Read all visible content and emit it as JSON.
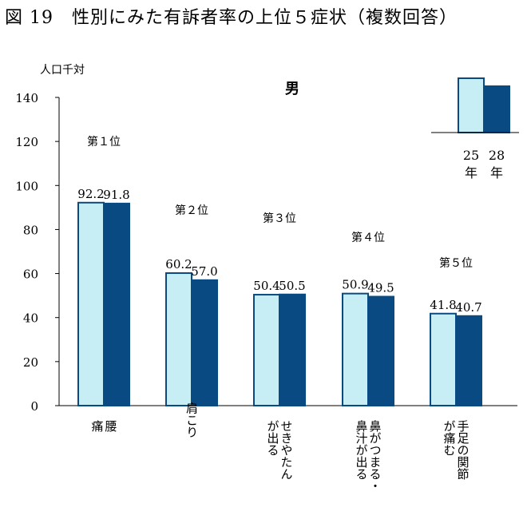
{
  "figure_title": "図 19　性別にみた有訴者率の上位５症状（複数回答）",
  "chart_data": {
    "type": "bar",
    "title": "男",
    "ylabel": "人口千対",
    "xlabel": "",
    "ylim": [
      0,
      140
    ],
    "yticks": [
      0,
      20,
      40,
      60,
      80,
      100,
      120,
      140
    ],
    "grid": false,
    "categories": [
      "腰痛",
      "肩こり",
      "せきやたんが出る",
      "鼻がつまる・鼻汁が出る",
      "手足の関節が痛む"
    ],
    "category_columns": [
      [
        "腰",
        "痛"
      ],
      [
        "肩",
        "こ",
        "り"
      ],
      [
        "せきやたん",
        "が出る"
      ],
      [
        "鼻がつまる・",
        "鼻汁が出る"
      ],
      [
        "手足の関節",
        "が痛む"
      ]
    ],
    "ranks": [
      "第１位",
      "第２位",
      "第３位",
      "第４位",
      "第５位"
    ],
    "series": [
      {
        "name": "25年",
        "values": [
          92.2,
          60.2,
          50.4,
          50.9,
          41.8
        ],
        "labels": [
          "92.2",
          "60.2",
          "50.4",
          "50.9",
          "41.8"
        ],
        "color": "#c8eef5"
      },
      {
        "name": "28年",
        "values": [
          91.8,
          57.0,
          50.5,
          49.5,
          40.7
        ],
        "labels": [
          "91.8",
          "57.0",
          "50.5",
          "49.5",
          "40.7"
        ],
        "color": "#0a4a82"
      }
    ],
    "legend": {
      "placement": "top-right",
      "items": [
        {
          "top": "25",
          "bottom": "年"
        },
        {
          "top": "28",
          "bottom": "年"
        }
      ]
    },
    "stroke_color": "#0a4a82"
  }
}
